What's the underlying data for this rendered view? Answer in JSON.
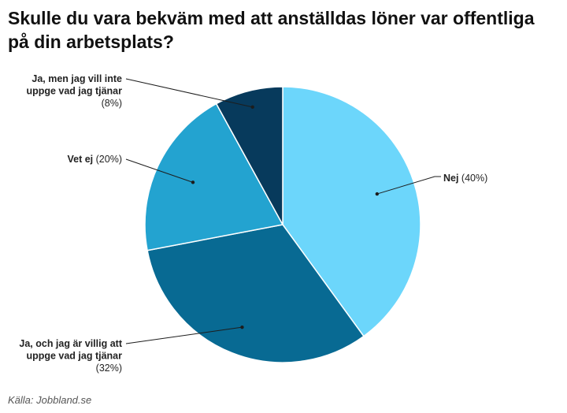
{
  "title": "Skulle du vara bekväm med att anställdas löner var offentliga på din arbetsplats?",
  "source": "Källa: Jobbland.se",
  "chart_data": {
    "type": "pie",
    "title": "Skulle du vara bekväm med att anställdas löner var offentliga på din arbetsplats?",
    "slices": [
      {
        "name": "Nej",
        "value": 40,
        "value_label": "(40%)",
        "label_lines": [
          "Nej"
        ],
        "color": "#6cd6fb"
      },
      {
        "name": "Ja, och jag är villig att uppge vad jag tjänar",
        "value": 32,
        "value_label": "(32%)",
        "label_lines": [
          "Ja, och jag är villig att",
          "uppge vad jag tjänar"
        ],
        "color": "#086a93"
      },
      {
        "name": "Vet ej",
        "value": 20,
        "value_label": "(20%)",
        "label_lines": [
          "Vet ej"
        ],
        "color": "#23a3d0"
      },
      {
        "name": "Ja, men jag vill inte uppge vad jag tjänar",
        "value": 8,
        "value_label": "(8%)",
        "label_lines": [
          "Ja, men jag vill inte",
          "uppge vad jag tjänar"
        ],
        "color": "#073a5c"
      }
    ],
    "start_angle": "12 o'clock",
    "direction": "clockwise",
    "legend": "none"
  }
}
